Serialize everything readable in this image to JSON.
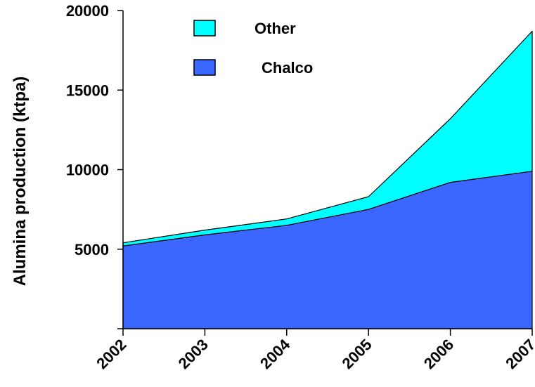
{
  "chart_data": {
    "type": "area",
    "stacked": true,
    "title": "",
    "xlabel": "",
    "ylabel": "Alumina production (ktpa)",
    "x": [
      "2002",
      "2003",
      "2004",
      "2005",
      "2006",
      "2007"
    ],
    "ylim": [
      0,
      20000
    ],
    "yticks": [
      "5000",
      "10000",
      "15000",
      "20000"
    ],
    "series": [
      {
        "name": "Chalco",
        "values": [
          5200,
          5900,
          6500,
          7500,
          9200,
          9900
        ],
        "color": "#3b66ff"
      },
      {
        "name": "Other",
        "values": [
          200,
          300,
          400,
          800,
          4000,
          8800
        ],
        "color": "#00ffff"
      }
    ],
    "legend": {
      "placement": "top-center",
      "order": [
        "Other",
        "Chalco"
      ]
    },
    "grid": false
  }
}
